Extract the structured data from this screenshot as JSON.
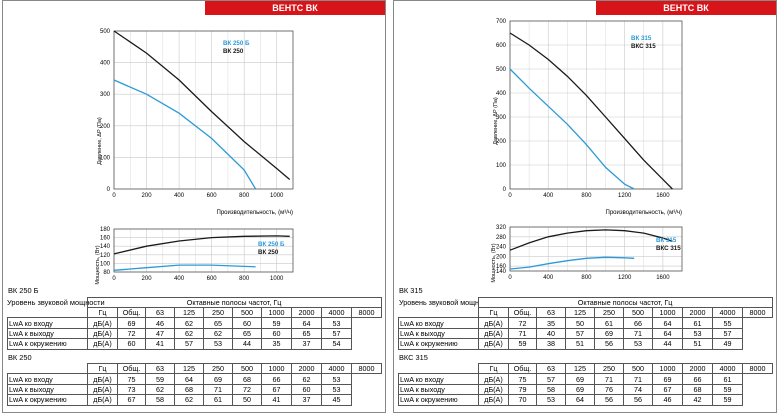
{
  "colors": {
    "brand": "#d7141a",
    "blue": "#2b9ad8",
    "black": "#1a1a1a",
    "grid": "#c8c8c8"
  },
  "panels": [
    {
      "brand": "ВЕНТС ВК",
      "pressure_ylabel": "Давление, ΔP (Па)",
      "power_ylabel": "Мощность, (Вт)",
      "xlabel": "Производительность, (м³/ч)",
      "legend": [
        "ВК 250 Б",
        "ВК 250"
      ],
      "table_unit_title": "Уровень звуковой мощности",
      "table_group_header": "Октавные полосы частот, Гц",
      "models": [
        {
          "name": "ВК 250 Б",
          "header": [
            "Гц",
            "Общ.",
            "63",
            "125",
            "250",
            "500",
            "1000",
            "2000",
            "4000",
            "8000"
          ],
          "rows": [
            {
              "label": "LwA ко входу",
              "unit": "дБ(А)",
              "values": [
                "69",
                "46",
                "62",
                "65",
                "60",
                "59",
                "64",
                "53"
              ],
              "total": "69"
            },
            {
              "label": "LwA к выходу",
              "unit": "дБ(А)",
              "values": [
                "72",
                "47",
                "62",
                "62",
                "65",
                "60",
                "65",
                "57"
              ],
              "total": "72"
            },
            {
              "label": "LwA к окружению",
              "unit": "дБ(А)",
              "values": [
                "60",
                "41",
                "57",
                "53",
                "44",
                "35",
                "37",
                "54"
              ],
              "total": "60"
            }
          ]
        },
        {
          "name": "ВК 250",
          "header": [
            "Гц",
            "Общ.",
            "63",
            "125",
            "250",
            "500",
            "1000",
            "2000",
            "4000",
            "8000"
          ],
          "rows": [
            {
              "label": "LwA ко входу",
              "unit": "дБ(А)",
              "values": [
                "75",
                "59",
                "64",
                "69",
                "68",
                "66",
                "62",
                "53"
              ],
              "total": "75"
            },
            {
              "label": "LwA к выходу",
              "unit": "дБ(А)",
              "values": [
                "73",
                "62",
                "68",
                "71",
                "72",
                "67",
                "60",
                "53"
              ],
              "total": "73"
            },
            {
              "label": "LwA к окружению",
              "unit": "дБ(А)",
              "values": [
                "67",
                "58",
                "62",
                "61",
                "50",
                "41",
                "37",
                "45"
              ],
              "total": "67"
            }
          ]
        }
      ]
    },
    {
      "brand": "ВЕНТС ВК",
      "pressure_ylabel": "Давление, ΔP (Па)",
      "power_ylabel": "Мощность, (Вт)",
      "xlabel": "Производительность, (м³/ч)",
      "legend": [
        "ВК 315",
        "ВКС 315"
      ],
      "table_unit_title": "Уровень звуковой мощности",
      "table_group_header": "Октавные полосы частот, Гц",
      "models": [
        {
          "name": "ВК 315",
          "header": [
            "Гц",
            "Общ.",
            "63",
            "125",
            "250",
            "500",
            "1000",
            "2000",
            "4000",
            "8000"
          ],
          "rows": [
            {
              "label": "LwA ко входу",
              "unit": "дБ(А)",
              "values": [
                "72",
                "35",
                "50",
                "61",
                "66",
                "64",
                "61",
                "55"
              ],
              "total": "72"
            },
            {
              "label": "LwA к выходу",
              "unit": "дБ(А)",
              "values": [
                "71",
                "40",
                "57",
                "69",
                "71",
                "64",
                "53",
                "57"
              ],
              "total": "71"
            },
            {
              "label": "LwA к окружению",
              "unit": "дБ(А)",
              "values": [
                "59",
                "38",
                "51",
                "56",
                "53",
                "44",
                "51",
                "49"
              ],
              "total": "59"
            }
          ]
        },
        {
          "name": "ВКС 315",
          "header": [
            "Гц",
            "Общ.",
            "63",
            "125",
            "250",
            "500",
            "1000",
            "2000",
            "4000",
            "8000"
          ],
          "rows": [
            {
              "label": "LwA ко входу",
              "unit": "дБ(А)",
              "values": [
                "75",
                "57",
                "69",
                "71",
                "71",
                "69",
                "66",
                "61"
              ],
              "total": "75"
            },
            {
              "label": "LwA к выходу",
              "unit": "дБ(А)",
              "values": [
                "79",
                "58",
                "69",
                "76",
                "74",
                "67",
                "68",
                "59"
              ],
              "total": "79"
            },
            {
              "label": "LwA к окружению",
              "unit": "дБ(А)",
              "values": [
                "70",
                "53",
                "64",
                "56",
                "56",
                "46",
                "42",
                "59"
              ],
              "total": "70"
            }
          ]
        }
      ]
    }
  ],
  "chart_data": [
    {
      "type": "line",
      "x": [
        0,
        200,
        400,
        600,
        800,
        1000
      ],
      "xlim": [
        0,
        1100
      ],
      "ylim": [
        0,
        500
      ],
      "yticks": [
        0,
        100,
        200,
        300,
        400,
        500
      ],
      "xticks": [
        0,
        200,
        400,
        600,
        800,
        1000
      ],
      "series": [
        {
          "name": "ВК 250 Б",
          "color": "blue",
          "points": [
            [
              0,
              345
            ],
            [
              200,
              300
            ],
            [
              400,
              240
            ],
            [
              600,
              160
            ],
            [
              800,
              60
            ],
            [
              870,
              0
            ]
          ]
        },
        {
          "name": "ВК 250",
          "color": "black",
          "points": [
            [
              0,
              500
            ],
            [
              200,
              430
            ],
            [
              400,
              345
            ],
            [
              600,
              245
            ],
            [
              800,
              150
            ],
            [
              1000,
              65
            ],
            [
              1080,
              30
            ]
          ]
        }
      ]
    },
    {
      "type": "line",
      "xlim": [
        0,
        1100
      ],
      "ylim": [
        80,
        180
      ],
      "yticks": [
        80,
        100,
        120,
        140,
        160,
        180
      ],
      "xticks": [
        0,
        200,
        400,
        600,
        800,
        1000
      ],
      "series": [
        {
          "name": "ВК 250 Б",
          "color": "blue",
          "points": [
            [
              0,
              84
            ],
            [
              200,
              90
            ],
            [
              400,
              96
            ],
            [
              600,
              96
            ],
            [
              800,
              93
            ],
            [
              870,
              92
            ]
          ]
        },
        {
          "name": "ВК 250",
          "color": "black",
          "points": [
            [
              0,
              122
            ],
            [
              200,
              140
            ],
            [
              400,
              152
            ],
            [
              600,
              160
            ],
            [
              800,
              163
            ],
            [
              1000,
              164
            ],
            [
              1080,
              163
            ]
          ]
        }
      ]
    },
    {
      "type": "line",
      "xlim": [
        0,
        1800
      ],
      "ylim": [
        0,
        700
      ],
      "yticks": [
        0,
        100,
        200,
        300,
        400,
        500,
        600,
        700
      ],
      "xticks": [
        0,
        400,
        800,
        1200,
        1600
      ],
      "series": [
        {
          "name": "ВК 315",
          "color": "blue",
          "points": [
            [
              0,
              500
            ],
            [
              200,
              420
            ],
            [
              400,
              345
            ],
            [
              600,
              270
            ],
            [
              800,
              185
            ],
            [
              1000,
              90
            ],
            [
              1200,
              20
            ],
            [
              1300,
              0
            ]
          ]
        },
        {
          "name": "ВКС 315",
          "color": "black",
          "points": [
            [
              0,
              650
            ],
            [
              200,
              600
            ],
            [
              400,
              540
            ],
            [
              600,
              470
            ],
            [
              800,
              390
            ],
            [
              1000,
              300
            ],
            [
              1200,
              210
            ],
            [
              1400,
              120
            ],
            [
              1600,
              40
            ],
            [
              1700,
              0
            ]
          ]
        }
      ]
    },
    {
      "type": "line",
      "xlim": [
        0,
        1800
      ],
      "ylim": [
        140,
        320
      ],
      "yticks": [
        140,
        160,
        200,
        240,
        280,
        320
      ],
      "xticks": [
        0,
        400,
        800,
        1200,
        1600
      ],
      "series": [
        {
          "name": "ВК 315",
          "color": "blue",
          "points": [
            [
              0,
              148
            ],
            [
              200,
              156
            ],
            [
              400,
              170
            ],
            [
              600,
              182
            ],
            [
              800,
              192
            ],
            [
              1000,
              196
            ],
            [
              1200,
              194
            ],
            [
              1300,
              192
            ]
          ]
        },
        {
          "name": "ВКС 315",
          "color": "black",
          "points": [
            [
              0,
              225
            ],
            [
              200,
              255
            ],
            [
              400,
              280
            ],
            [
              600,
              295
            ],
            [
              800,
              305
            ],
            [
              1000,
              308
            ],
            [
              1200,
              305
            ],
            [
              1400,
              295
            ],
            [
              1600,
              275
            ],
            [
              1700,
              262
            ]
          ]
        }
      ]
    }
  ]
}
